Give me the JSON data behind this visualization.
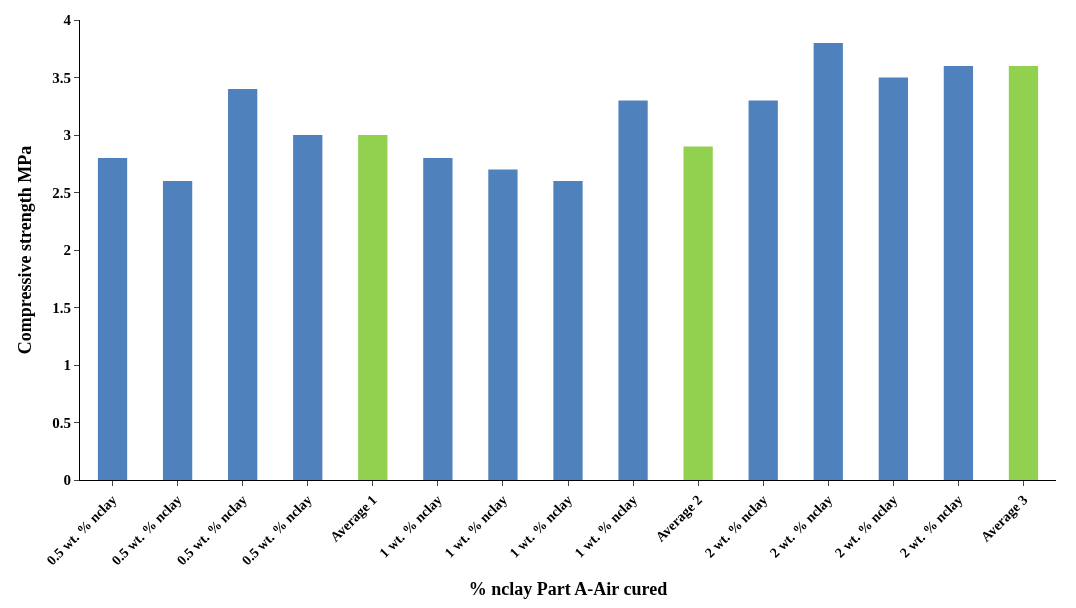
{
  "chart_data": {
    "type": "bar",
    "xlabel": "% nclay Part A-Air cured",
    "ylabel": "Compressive strength MPa",
    "categories": [
      "0.5 wt. % nclay",
      "0.5 wt. % nclay",
      "0.5 wt. % nclay",
      "0.5 wt. % nclay",
      "Average 1",
      "1 wt. % nclay",
      "1 wt. % nclay",
      "1 wt. % nclay",
      "1 wt. % nclay",
      "Average 2",
      "2 wt. % nclay",
      "2 wt. % nclay",
      "2 wt. % nclay",
      "2 wt. % nclay",
      "Average 3"
    ],
    "values": [
      2.8,
      2.6,
      3.4,
      3.0,
      3.0,
      2.8,
      2.7,
      2.6,
      3.3,
      2.9,
      3.3,
      3.8,
      3.5,
      3.6,
      3.6
    ],
    "colors": [
      "#4f81bd",
      "#4f81bd",
      "#4f81bd",
      "#4f81bd",
      "#92d050",
      "#4f81bd",
      "#4f81bd",
      "#4f81bd",
      "#4f81bd",
      "#92d050",
      "#4f81bd",
      "#4f81bd",
      "#4f81bd",
      "#4f81bd",
      "#92d050"
    ],
    "ylim": [
      0,
      4
    ],
    "yticks": [
      0,
      0.5,
      1,
      1.5,
      2,
      2.5,
      3,
      3.5,
      4
    ]
  }
}
